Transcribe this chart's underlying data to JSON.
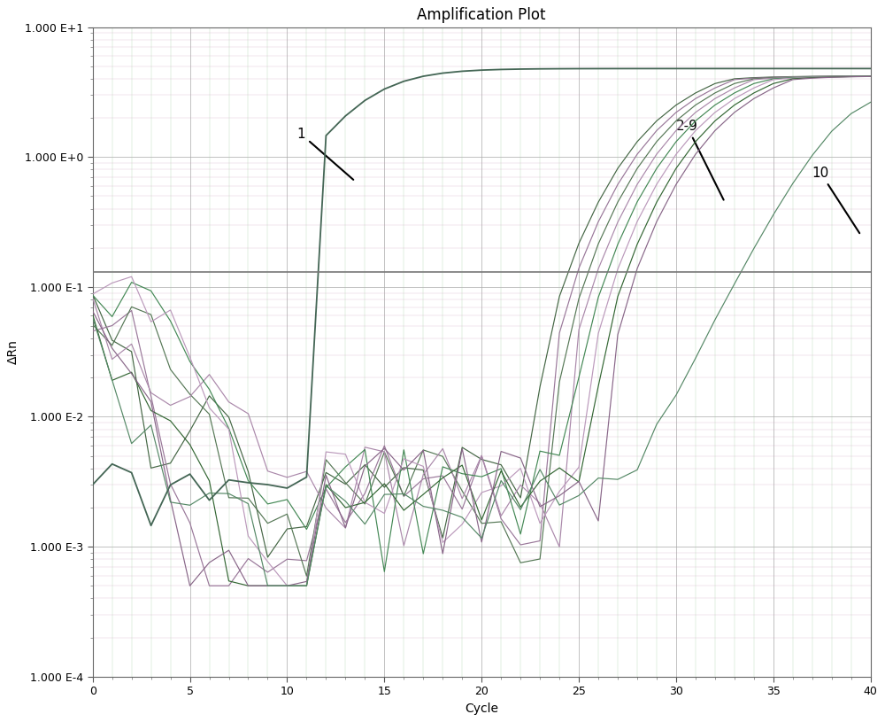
{
  "title": "Amplification Plot",
  "xlabel": "Cycle",
  "ylabel": "ΔRn",
  "xlim": [
    0,
    40
  ],
  "ylim_log": [
    -4,
    1
  ],
  "threshold": 0.13,
  "bg_color": "#ffffff",
  "grid_major_color_h": "#aaaaaa",
  "grid_major_color_v": "#aaaaaa",
  "grid_minor_color_h": "#ddbbcc",
  "grid_minor_color_v": "#bbddbb",
  "threshold_color": "#777777",
  "curve1_color": "#446655",
  "curve_colors_green": [
    "#446644",
    "#557755",
    "#448855",
    "#336633",
    "#558866"
  ],
  "curve_colors_purple": [
    "#997799",
    "#aa88aa",
    "#bb99bb",
    "#886688",
    "#aa99bb"
  ],
  "annotation_1": "1",
  "annotation_29": "2-9",
  "annotation_10": "10"
}
